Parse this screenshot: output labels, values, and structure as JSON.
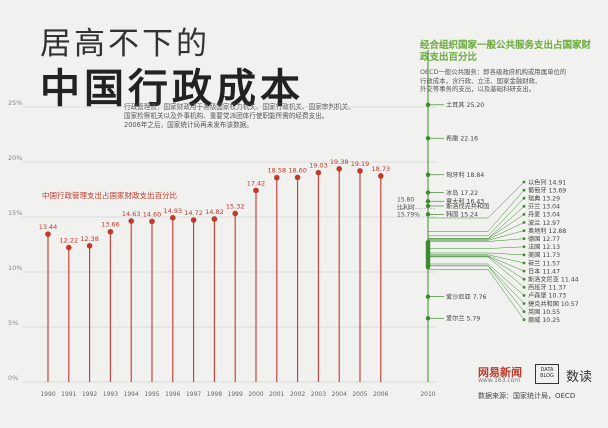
{
  "title_line1": "居高不下的",
  "title_line2": "中国行政成本",
  "description": [
    "行政管理费：国家财政用于各级国家权力机关、国家行政机关、国家审判机关、",
    "国家检察机关以及外事机构、重要党派团体行使职能所需的经费支出。",
    "2006年之后，国家统计局再未发布该数据。"
  ],
  "oecd_title": "经合组织国家一般公共服务支出占国家财政支出百分比",
  "oecd_description": [
    "OECD一般公共服务：即各级政府机构或用属单位的",
    "行政成本，含行政、立法、国家金融财政、",
    "外交等事务的支出，以及基础科研支出。"
  ],
  "source": "数据来源：国家统计局，OECD",
  "logo_netease": "网易新闻",
  "logo_netease_url": "www.163.com",
  "logo_datablog": "DATA BLOG",
  "logo_shudu": "数读",
  "colors": {
    "china": "#c0392b",
    "oecd": "#3d8a2e",
    "grid": "#c8c8c8",
    "axis_text": "#888888"
  },
  "chart_data": [
    {
      "type": "bar",
      "title": "中国行政管理支出占国家财政支出百分比",
      "categories": [
        "1990",
        "1991",
        "1992",
        "1993",
        "1994",
        "1995",
        "1996",
        "1997",
        "1998",
        "1999",
        "2000",
        "2001",
        "2002",
        "2003",
        "2004",
        "2005",
        "2006"
      ],
      "values": [
        13.44,
        12.22,
        12.38,
        13.66,
        14.63,
        14.6,
        14.93,
        14.72,
        14.82,
        15.32,
        17.42,
        18.58,
        18.6,
        19.03,
        19.38,
        19.19,
        18.73
      ],
      "value_labels": [
        "13.44",
        "12.22",
        "12.38",
        "13.66",
        "14.63",
        "14.60",
        "14.93",
        "14.72",
        "14.82",
        "15.32",
        "17.42",
        "18.58",
        "18.60",
        "19.03",
        "19.38",
        "19.19",
        "18.73"
      ],
      "ylim": [
        0,
        25
      ],
      "yticks": [
        "0%",
        "5%",
        "10%",
        "15%",
        "20%",
        "25%"
      ],
      "grid": true
    },
    {
      "type": "scatter",
      "title": "经合组织国家一般公共服务支出占国家财政支出百分比",
      "x": "2010",
      "average_label": "15.80",
      "average_label2": "比利时",
      "average_label3": "15.79%",
      "points_left": [
        {
          "name": "土耳其",
          "value": 25.2,
          "text": "土耳其 25.20"
        },
        {
          "name": "希腊",
          "value": 22.16,
          "text": "希腊 22.16"
        },
        {
          "name": "匈牙利",
          "value": 18.84,
          "text": "匈牙利 18.84"
        },
        {
          "name": "冰岛",
          "value": 17.22,
          "text": "冰岛 17.22"
        },
        {
          "name": "意大利",
          "value": 16.43,
          "text": "意大利 16.43"
        },
        {
          "name": "斯洛伐克共和国",
          "value": 16.0,
          "text": "斯洛伐克共和国"
        },
        {
          "name": "韩国",
          "value": 15.24,
          "text": "韩国 15.24"
        },
        {
          "name": "爱沙尼亚",
          "value": 7.76,
          "text": "爱沙尼亚 7.76"
        },
        {
          "name": "爱尔兰",
          "value": 5.79,
          "text": "爱尔兰 5.79"
        }
      ],
      "points_right": [
        {
          "name": "以色列",
          "value": 14.91,
          "text": "以色列 14.91"
        },
        {
          "name": "葡萄牙",
          "value": 13.69,
          "text": "葡萄牙 13.69"
        },
        {
          "name": "瑞典",
          "value": 13.29,
          "text": "瑞典 13.29"
        },
        {
          "name": "芬兰",
          "value": 13.04,
          "text": "芬兰 13.04"
        },
        {
          "name": "丹麦",
          "value": 13.04,
          "text": "丹麦 13.04"
        },
        {
          "name": "波兰",
          "value": 12.97,
          "text": "波兰 12.97"
        },
        {
          "name": "奥地利",
          "value": 12.88,
          "text": "奥地利 12.88"
        },
        {
          "name": "德国",
          "value": 12.77,
          "text": "德国 12.77"
        },
        {
          "name": "法国",
          "value": 12.13,
          "text": "法国 12.13"
        },
        {
          "name": "美国",
          "value": 11.73,
          "text": "美国 11.73"
        },
        {
          "name": "荷兰",
          "value": 11.57,
          "text": "荷兰 11.57"
        },
        {
          "name": "日本",
          "value": 11.47,
          "text": "日本 11.47"
        },
        {
          "name": "斯洛文尼亚",
          "value": 11.44,
          "text": "斯洛文尼亚 11.44"
        },
        {
          "name": "西班牙",
          "value": 11.37,
          "text": "西班牙 11.37"
        },
        {
          "name": "卢森堡",
          "value": 10.73,
          "text": "卢森堡 10.73"
        },
        {
          "name": "捷克共和国",
          "value": 10.57,
          "text": "捷克共和国 10.57"
        },
        {
          "name": "英国",
          "value": 10.55,
          "text": "英国 10.55"
        },
        {
          "name": "挪威",
          "value": 10.25,
          "text": "挪威 10.25"
        }
      ]
    }
  ]
}
